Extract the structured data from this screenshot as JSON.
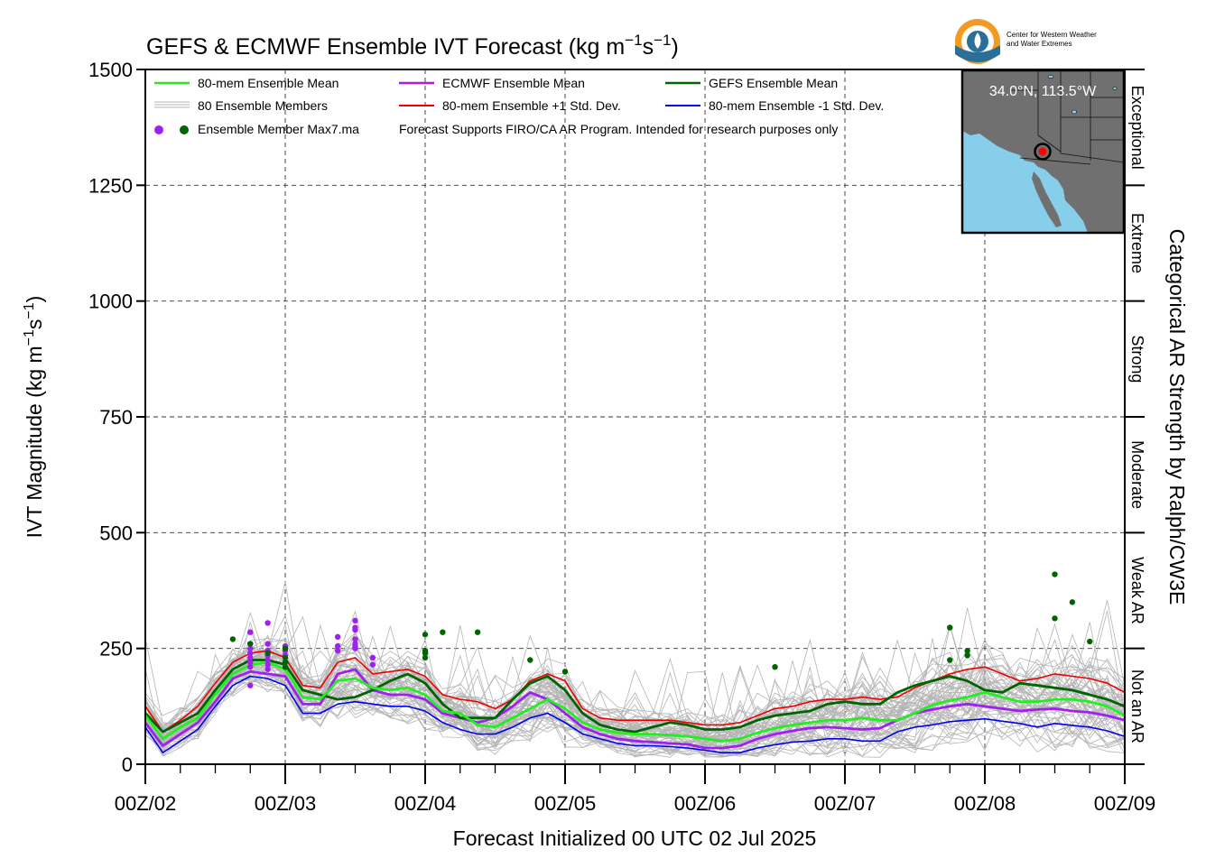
{
  "chart_data": {
    "type": "line",
    "title": "GEFS & ECMWF Ensemble IVT Forecast (kg m",
    "title_sup1": "−1",
    "title_mid": "s",
    "title_sup2": "−1",
    "title_end": ")",
    "ylabel_base": "IVT Magnitude (kg m",
    "ylabel_sup1": "−1",
    "ylabel_mid": "s",
    "ylabel_sup2": "−1",
    "ylabel_end": ")",
    "xlabel": "Forecast Initialized 00 UTC 02 Jul 2025",
    "right_label": "Categorical AR Strength by Ralph/CW3E",
    "note": "Forecast Supports FIRO/CA AR Program. Intended for research purposes only",
    "ylim": [
      0,
      1500
    ],
    "xlim_hours": [
      0,
      168
    ],
    "yticks": [
      0,
      250,
      500,
      750,
      1000,
      1250,
      1500
    ],
    "ytick_labels": [
      "0",
      "250",
      "500",
      "750",
      "1000",
      "1250",
      "1500"
    ],
    "xticks_hours": [
      0,
      24,
      48,
      72,
      96,
      120,
      144,
      168
    ],
    "xtick_labels": [
      "00Z/02",
      "00Z/03",
      "00Z/04",
      "00Z/05",
      "00Z/06",
      "00Z/07",
      "00Z/08",
      "00Z/09"
    ],
    "grid": true,
    "legend_placement": "top-left",
    "categories": [
      {
        "name": "Not an AR",
        "from": 0,
        "to": 250
      },
      {
        "name": "Weak AR",
        "from": 250,
        "to": 500
      },
      {
        "name": "Moderate",
        "from": 500,
        "to": 750
      },
      {
        "name": "Strong",
        "from": 750,
        "to": 1000
      },
      {
        "name": "Extreme",
        "from": 1000,
        "to": 1250
      },
      {
        "name": "Exceptional",
        "from": 1250,
        "to": 1500
      }
    ],
    "legend": {
      "mean80": "80-mem Ensemble Mean",
      "members": "80 Ensemble Members",
      "max": "Ensemble Member Max7.ma",
      "ecmwf": "ECMWF Ensemble Mean",
      "plus": "80-mem Ensemble +1 Std. Dev.",
      "gefs": "GEFS Ensemble Mean",
      "minus": "80-mem Ensemble -1 Std. Dev."
    },
    "colors": {
      "mean80": "#22ee22",
      "members": "#b4b4b4",
      "ecmwf": "#a020f0",
      "plus": "#ee0000",
      "gefs": "#006400",
      "minus": "#0000ee",
      "ecmwf_max": "#a020f0",
      "gefs_max": "#006400"
    },
    "series": [
      {
        "name": "80-mem Ensemble Mean",
        "key": "mean80",
        "x": [
          0,
          3,
          6,
          9,
          12,
          15,
          18,
          21,
          24,
          27,
          30,
          33,
          36,
          39,
          42,
          45,
          48,
          51,
          54,
          57,
          60,
          63,
          66,
          69,
          72,
          75,
          78,
          81,
          84,
          87,
          90,
          93,
          96,
          99,
          102,
          105,
          108,
          111,
          114,
          117,
          120,
          123,
          126,
          129,
          132,
          135,
          138,
          141,
          144,
          147,
          150,
          153,
          156,
          159,
          162,
          165,
          168
        ],
        "values": [
          105,
          55,
          80,
          100,
          150,
          195,
          215,
          220,
          205,
          145,
          140,
          180,
          185,
          165,
          160,
          165,
          150,
          115,
          110,
          85,
          80,
          100,
          120,
          140,
          120,
          90,
          75,
          68,
          65,
          65,
          63,
          60,
          55,
          50,
          55,
          68,
          78,
          85,
          90,
          95,
          95,
          100,
          95,
          95,
          110,
          128,
          138,
          145,
          155,
          145,
          135,
          135,
          140,
          140,
          135,
          125,
          105
        ]
      },
      {
        "name": "ECMWF Ensemble Mean",
        "key": "ecmwf",
        "x": [
          0,
          3,
          6,
          9,
          12,
          15,
          18,
          21,
          24,
          27,
          30,
          33,
          36,
          39,
          42,
          45,
          48,
          51,
          54,
          57,
          60,
          63,
          66,
          69,
          72,
          75,
          78,
          81,
          84,
          87,
          90,
          93,
          96,
          99,
          102,
          105,
          108,
          111,
          114,
          117,
          120,
          123,
          126,
          129,
          132,
          135,
          138,
          141,
          144,
          147,
          150,
          153,
          156,
          159,
          162,
          165,
          168
        ],
        "values": [
          90,
          40,
          65,
          90,
          135,
          185,
          200,
          195,
          190,
          130,
          130,
          195,
          205,
          160,
          150,
          150,
          140,
          110,
          100,
          90,
          100,
          125,
          155,
          140,
          110,
          80,
          65,
          55,
          50,
          48,
          45,
          43,
          35,
          35,
          40,
          55,
          65,
          72,
          78,
          80,
          78,
          75,
          78,
          95,
          110,
          118,
          125,
          130,
          125,
          120,
          115,
          118,
          120,
          115,
          112,
          105,
          95
        ]
      },
      {
        "name": "GEFS Ensemble Mean",
        "key": "gefs",
        "x": [
          0,
          3,
          6,
          9,
          12,
          15,
          18,
          21,
          24,
          27,
          30,
          33,
          36,
          39,
          42,
          45,
          48,
          51,
          54,
          57,
          60,
          63,
          66,
          69,
          72,
          75,
          78,
          81,
          84,
          87,
          90,
          93,
          96,
          99,
          102,
          105,
          108,
          111,
          114,
          117,
          120,
          123,
          126,
          129,
          132,
          135,
          138,
          141,
          144,
          147,
          150,
          153,
          156,
          159,
          162,
          165,
          168
        ],
        "values": [
          110,
          70,
          90,
          110,
          160,
          205,
          225,
          225,
          215,
          160,
          150,
          140,
          145,
          160,
          180,
          195,
          175,
          130,
          100,
          100,
          100,
          140,
          175,
          190,
          160,
          110,
          85,
          75,
          70,
          80,
          90,
          85,
          75,
          75,
          80,
          95,
          105,
          110,
          115,
          130,
          135,
          130,
          130,
          155,
          170,
          180,
          190,
          180,
          160,
          155,
          175,
          170,
          165,
          160,
          150,
          140,
          125
        ]
      },
      {
        "name": "80-mem Ensemble +1 Std. Dev.",
        "key": "plus",
        "x": [
          0,
          3,
          6,
          9,
          12,
          15,
          18,
          21,
          24,
          27,
          30,
          33,
          36,
          39,
          42,
          45,
          48,
          51,
          54,
          57,
          60,
          63,
          66,
          69,
          72,
          75,
          78,
          81,
          84,
          87,
          90,
          93,
          96,
          99,
          102,
          105,
          108,
          111,
          114,
          117,
          120,
          123,
          126,
          129,
          132,
          135,
          138,
          141,
          144,
          147,
          150,
          153,
          156,
          159,
          162,
          165,
          168
        ],
        "values": [
          125,
          70,
          95,
          125,
          175,
          220,
          240,
          245,
          230,
          170,
          165,
          220,
          230,
          195,
          200,
          205,
          190,
          150,
          140,
          135,
          120,
          140,
          180,
          195,
          180,
          120,
          100,
          95,
          95,
          95,
          95,
          90,
          85,
          85,
          90,
          105,
          120,
          125,
          135,
          140,
          140,
          145,
          140,
          145,
          165,
          180,
          195,
          205,
          210,
          195,
          180,
          185,
          195,
          190,
          185,
          175,
          155
        ]
      },
      {
        "name": "80-mem Ensemble -1 Std. Dev.",
        "key": "minus",
        "x": [
          0,
          3,
          6,
          9,
          12,
          15,
          18,
          21,
          24,
          27,
          30,
          33,
          36,
          39,
          42,
          45,
          48,
          51,
          54,
          57,
          60,
          63,
          66,
          69,
          72,
          75,
          78,
          81,
          84,
          87,
          90,
          93,
          96,
          99,
          102,
          105,
          108,
          111,
          114,
          117,
          120,
          123,
          126,
          129,
          132,
          135,
          138,
          141,
          144,
          147,
          150,
          153,
          156,
          159,
          162,
          165,
          168
        ],
        "values": [
          80,
          25,
          50,
          75,
          125,
          170,
          190,
          185,
          170,
          110,
          110,
          130,
          135,
          130,
          125,
          125,
          115,
          90,
          75,
          65,
          65,
          80,
          100,
          110,
          90,
          65,
          55,
          45,
          40,
          40,
          38,
          35,
          30,
          25,
          25,
          35,
          42,
          48,
          50,
          55,
          55,
          50,
          50,
          70,
          80,
          85,
          92,
          95,
          98,
          93,
          88,
          80,
          88,
          84,
          80,
          72,
          60
        ]
      }
    ],
    "max_points": [
      {
        "model": "ECMWF",
        "x": [
          18,
          18,
          18,
          18,
          18,
          18,
          18,
          18,
          21,
          21,
          21,
          21,
          21,
          21,
          21,
          24,
          24,
          24,
          33,
          33,
          33,
          36,
          36,
          36,
          36,
          36,
          36,
          36,
          39,
          39
        ],
        "y": [
          285,
          260,
          250,
          240,
          230,
          220,
          210,
          170,
          305,
          260,
          245,
          235,
          225,
          215,
          205,
          255,
          245,
          235,
          275,
          255,
          245,
          310,
          295,
          290,
          270,
          260,
          255,
          250,
          230,
          215
        ]
      },
      {
        "model": "GEFS",
        "x": [
          15,
          18,
          21,
          24,
          24,
          24,
          24,
          48,
          48,
          48,
          48,
          51,
          57,
          66,
          72,
          108,
          138,
          138,
          141,
          141,
          156,
          156,
          159,
          162
        ],
        "y": [
          270,
          260,
          240,
          250,
          230,
          220,
          210,
          280,
          245,
          240,
          230,
          285,
          285,
          225,
          200,
          210,
          295,
          225,
          245,
          235,
          410,
          315,
          350,
          265
        ]
      }
    ],
    "map": {
      "location": "34.0°N, 113.5°W",
      "colors": {
        "ocean": "#87ceeb",
        "land": "#707070",
        "marker": "#ff0000"
      }
    },
    "logo": {
      "line1": "Center for Western Weather",
      "line2": "and Water Extremes",
      "colors": {
        "orange": "#f29a22",
        "blue": "#2a6f97",
        "text": "#2a6f97"
      }
    }
  }
}
